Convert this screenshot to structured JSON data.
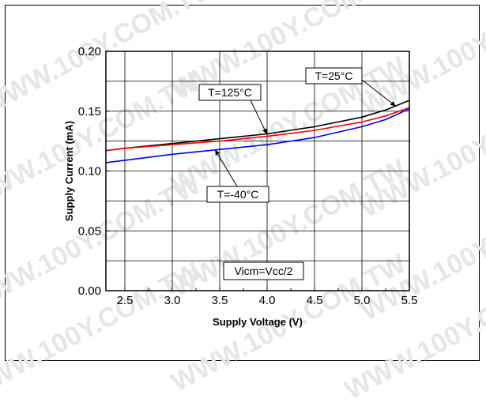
{
  "watermark": "WWW.100Y.COM.TW",
  "chart_data": {
    "type": "line",
    "title": "",
    "xlabel": "Supply Voltage (V)",
    "ylabel": "Supply Current (mA)",
    "xlim": [
      2.3,
      5.5
    ],
    "ylim": [
      0.0,
      0.2
    ],
    "xticks": [
      2.5,
      3.0,
      3.5,
      4.0,
      4.5,
      5.0,
      5.5
    ],
    "yticks": [
      0.0,
      0.05,
      0.1,
      0.15,
      0.2
    ],
    "xtick_labels": [
      "2.5",
      "3.0",
      "3.5",
      "4.0",
      "4.5",
      "5.0",
      "5.5"
    ],
    "ytick_labels": [
      "0.00",
      "0.05",
      "0.10",
      "0.15",
      "0.20"
    ],
    "grid": true,
    "series": [
      {
        "name": "T=25°C",
        "color": "#000000",
        "x": [
          2.3,
          2.5,
          3.0,
          3.5,
          4.0,
          4.5,
          5.0,
          5.25,
          5.5
        ],
        "y": [
          0.117,
          0.119,
          0.123,
          0.127,
          0.131,
          0.137,
          0.145,
          0.151,
          0.159
        ]
      },
      {
        "name": "T=125°C",
        "color": "#ff0000",
        "x": [
          2.3,
          2.5,
          3.0,
          3.5,
          4.0,
          4.5,
          5.0,
          5.25,
          5.5
        ],
        "y": [
          0.117,
          0.119,
          0.122,
          0.125,
          0.129,
          0.134,
          0.141,
          0.146,
          0.153
        ]
      },
      {
        "name": "T=-40°C",
        "color": "#0000ff",
        "x": [
          2.3,
          2.5,
          3.0,
          3.5,
          4.0,
          4.5,
          5.0,
          5.25,
          5.5
        ],
        "y": [
          0.107,
          0.109,
          0.114,
          0.118,
          0.122,
          0.128,
          0.137,
          0.143,
          0.152
        ]
      }
    ],
    "annotations": [
      {
        "text": "T=25°C"
      },
      {
        "text": "T=125°C"
      },
      {
        "text": "T=-40°C"
      },
      {
        "text": "Vicm=Vcc/2"
      }
    ]
  }
}
